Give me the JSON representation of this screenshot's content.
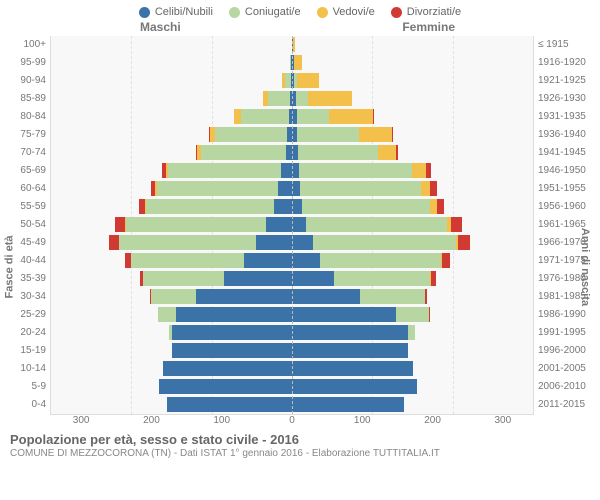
{
  "title": "Popolazione per età, sesso e stato civile - 2016",
  "subtitle": "COMUNE DI MEZZOCORONA (TN) - Dati ISTAT 1° gennaio 2016 - Elaborazione TUTTITALIA.IT",
  "legend": [
    {
      "label": "Celibi/Nubili",
      "color": "#3b73a8"
    },
    {
      "label": "Coniugati/e",
      "color": "#b7d6a1"
    },
    {
      "label": "Vedovi/e",
      "color": "#f3c14b"
    },
    {
      "label": "Divorziati/e",
      "color": "#d03a33"
    }
  ],
  "gender_left": "Maschi",
  "gender_right": "Femmine",
  "y_title_left": "Fasce di età",
  "y_title_right": "Anni di nascita",
  "age_labels": [
    "100+",
    "95-99",
    "90-94",
    "85-89",
    "80-84",
    "75-79",
    "70-74",
    "65-69",
    "60-64",
    "55-59",
    "50-54",
    "45-49",
    "40-44",
    "35-39",
    "30-34",
    "25-29",
    "20-24",
    "15-19",
    "10-14",
    "5-9",
    "0-4"
  ],
  "birth_labels": [
    "≤ 1915",
    "1916-1920",
    "1921-1925",
    "1926-1930",
    "1931-1935",
    "1936-1940",
    "1941-1945",
    "1946-1950",
    "1951-1955",
    "1956-1960",
    "1961-1965",
    "1966-1970",
    "1971-1975",
    "1976-1980",
    "1981-1985",
    "1986-1990",
    "1991-1995",
    "1996-2000",
    "2001-2005",
    "2006-2010",
    "2011-2015"
  ],
  "x_ticks": [
    "300",
    "200",
    "100",
    "0",
    "100",
    "200",
    "300"
  ],
  "axis_max": 300,
  "background_color": "#f8f8f8",
  "grid_color": "#e2e2e2",
  "rows": [
    {
      "m": {
        "cel": 0,
        "con": 0,
        "ved": 0,
        "div": 0
      },
      "f": {
        "cel": 1,
        "con": 0,
        "ved": 3,
        "div": 0
      }
    },
    {
      "m": {
        "cel": 1,
        "con": 1,
        "ved": 1,
        "div": 0
      },
      "f": {
        "cel": 2,
        "con": 0,
        "ved": 10,
        "div": 0
      }
    },
    {
      "m": {
        "cel": 1,
        "con": 8,
        "ved": 3,
        "div": 0
      },
      "f": {
        "cel": 3,
        "con": 3,
        "ved": 28,
        "div": 0
      }
    },
    {
      "m": {
        "cel": 2,
        "con": 28,
        "ved": 6,
        "div": 0
      },
      "f": {
        "cel": 5,
        "con": 15,
        "ved": 55,
        "div": 0
      }
    },
    {
      "m": {
        "cel": 4,
        "con": 60,
        "ved": 8,
        "div": 0
      },
      "f": {
        "cel": 6,
        "con": 40,
        "ved": 55,
        "div": 1
      }
    },
    {
      "m": {
        "cel": 6,
        "con": 90,
        "ved": 6,
        "div": 1
      },
      "f": {
        "cel": 6,
        "con": 78,
        "ved": 40,
        "div": 2
      }
    },
    {
      "m": {
        "cel": 8,
        "con": 105,
        "ved": 5,
        "div": 2
      },
      "f": {
        "cel": 7,
        "con": 100,
        "ved": 22,
        "div": 3
      }
    },
    {
      "m": {
        "cel": 14,
        "con": 140,
        "ved": 3,
        "div": 5
      },
      "f": {
        "cel": 9,
        "con": 140,
        "ved": 18,
        "div": 6
      }
    },
    {
      "m": {
        "cel": 18,
        "con": 150,
        "ved": 2,
        "div": 6
      },
      "f": {
        "cel": 10,
        "con": 150,
        "ved": 12,
        "div": 8
      }
    },
    {
      "m": {
        "cel": 22,
        "con": 160,
        "ved": 1,
        "div": 8
      },
      "f": {
        "cel": 12,
        "con": 160,
        "ved": 8,
        "div": 9
      }
    },
    {
      "m": {
        "cel": 32,
        "con": 175,
        "ved": 1,
        "div": 12
      },
      "f": {
        "cel": 18,
        "con": 175,
        "ved": 5,
        "div": 14
      }
    },
    {
      "m": {
        "cel": 45,
        "con": 170,
        "ved": 1,
        "div": 12
      },
      "f": {
        "cel": 26,
        "con": 178,
        "ved": 3,
        "div": 15
      }
    },
    {
      "m": {
        "cel": 60,
        "con": 140,
        "ved": 0,
        "div": 8
      },
      "f": {
        "cel": 35,
        "con": 150,
        "ved": 2,
        "div": 10
      }
    },
    {
      "m": {
        "cel": 85,
        "con": 100,
        "ved": 0,
        "div": 4
      },
      "f": {
        "cel": 52,
        "con": 120,
        "ved": 1,
        "div": 6
      }
    },
    {
      "m": {
        "cel": 120,
        "con": 55,
        "ved": 0,
        "div": 2
      },
      "f": {
        "cel": 85,
        "con": 80,
        "ved": 0,
        "div": 3
      }
    },
    {
      "m": {
        "cel": 145,
        "con": 22,
        "ved": 0,
        "div": 0
      },
      "f": {
        "cel": 130,
        "con": 40,
        "ved": 0,
        "div": 1
      }
    },
    {
      "m": {
        "cel": 150,
        "con": 3,
        "ved": 0,
        "div": 0
      },
      "f": {
        "cel": 145,
        "con": 8,
        "ved": 0,
        "div": 0
      }
    },
    {
      "m": {
        "cel": 150,
        "con": 0,
        "ved": 0,
        "div": 0
      },
      "f": {
        "cel": 145,
        "con": 0,
        "ved": 0,
        "div": 0
      }
    },
    {
      "m": {
        "cel": 160,
        "con": 0,
        "ved": 0,
        "div": 0
      },
      "f": {
        "cel": 150,
        "con": 0,
        "ved": 0,
        "div": 0
      }
    },
    {
      "m": {
        "cel": 165,
        "con": 0,
        "ved": 0,
        "div": 0
      },
      "f": {
        "cel": 155,
        "con": 0,
        "ved": 0,
        "div": 0
      }
    },
    {
      "m": {
        "cel": 155,
        "con": 0,
        "ved": 0,
        "div": 0
      },
      "f": {
        "cel": 140,
        "con": 0,
        "ved": 0,
        "div": 0
      }
    }
  ]
}
